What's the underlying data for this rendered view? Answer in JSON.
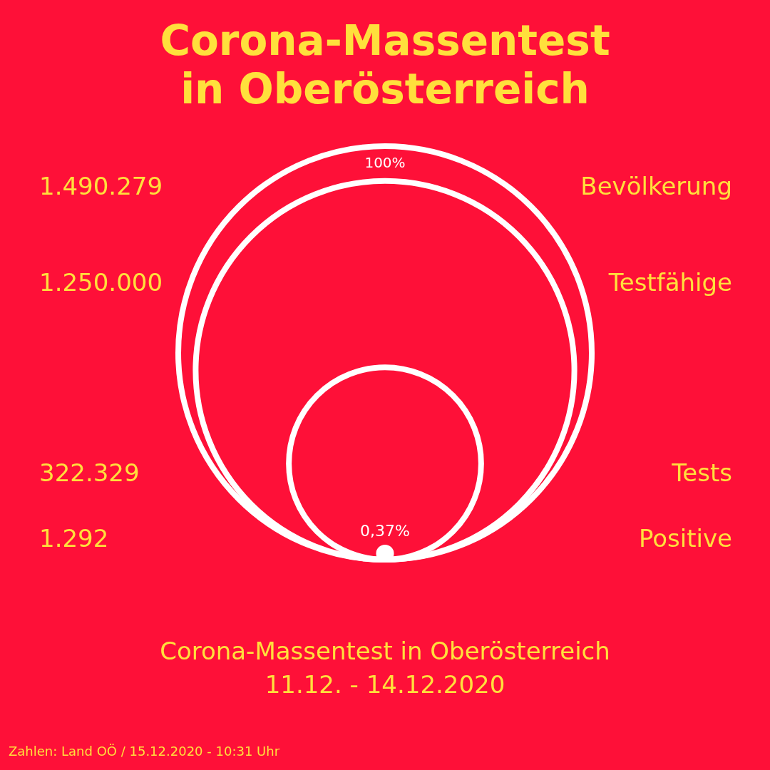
{
  "chart_data": {
    "type": "other",
    "title": "Corona-Massentest in Oberösterreich",
    "subtitle": "Corona-Massentest in Oberösterreich",
    "categories": [
      "Bevölkerung",
      "Testfähige",
      "Tests",
      "Positive"
    ],
    "values": [
      1490279,
      1250000,
      322329,
      1292
    ],
    "colors": [
      "#ffffff",
      "#ffffff",
      "#ffffff",
      "#ffffff"
    ],
    "value_labels": [
      "1.490.279",
      "1.250.000",
      "322.329",
      "1.292"
    ],
    "annotations": [
      "100%",
      "0,37%",
      "11.12. - 14.12.2020",
      "Zahlen: Land OÖ / 15.12.2020 - 10:31 Uhr"
    ]
  }
}
